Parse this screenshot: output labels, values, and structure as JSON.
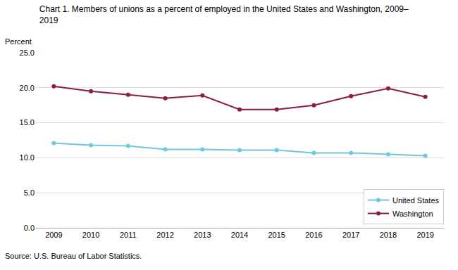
{
  "chart_data": {
    "type": "line",
    "title": "Chart 1. Members of unions as a percent of employed in the United States and Washington, 2009–\n2019",
    "y_label": "Percent",
    "annotations": [
      "Source: U.S. Bureau of Labor Statistics."
    ],
    "x": [
      2009,
      2010,
      2011,
      2012,
      2013,
      2014,
      2015,
      2016,
      2017,
      2018,
      2019
    ],
    "series": [
      {
        "name": "United States",
        "color": "#70C8E0",
        "values": [
          12.1,
          11.8,
          11.7,
          11.2,
          11.2,
          11.1,
          11.1,
          10.7,
          10.7,
          10.5,
          10.3
        ]
      },
      {
        "name": "Washington",
        "color": "#8B1A4A",
        "values": [
          20.2,
          19.5,
          19.0,
          18.5,
          18.9,
          16.9,
          16.9,
          17.5,
          18.8,
          19.9,
          18.7
        ]
      }
    ],
    "xlim": [
      2008.5,
      2019.5
    ],
    "xticks": [
      2009,
      2010,
      2011,
      2012,
      2013,
      2014,
      2015,
      2016,
      2017,
      2018,
      2019
    ],
    "ylim": [
      0.0,
      25.0
    ],
    "yticks": [
      {
        "value": 0,
        "label": "0.0"
      },
      {
        "value": 5,
        "label": "5.0"
      },
      {
        "value": 10,
        "label": "10.0"
      },
      {
        "value": 15,
        "label": "15.0"
      },
      {
        "value": 20,
        "label": "20.0"
      },
      {
        "value": 25,
        "label": "25.0"
      }
    ],
    "grid": true,
    "legend": "lower right",
    "marker": "circle",
    "line_style": "solid"
  }
}
